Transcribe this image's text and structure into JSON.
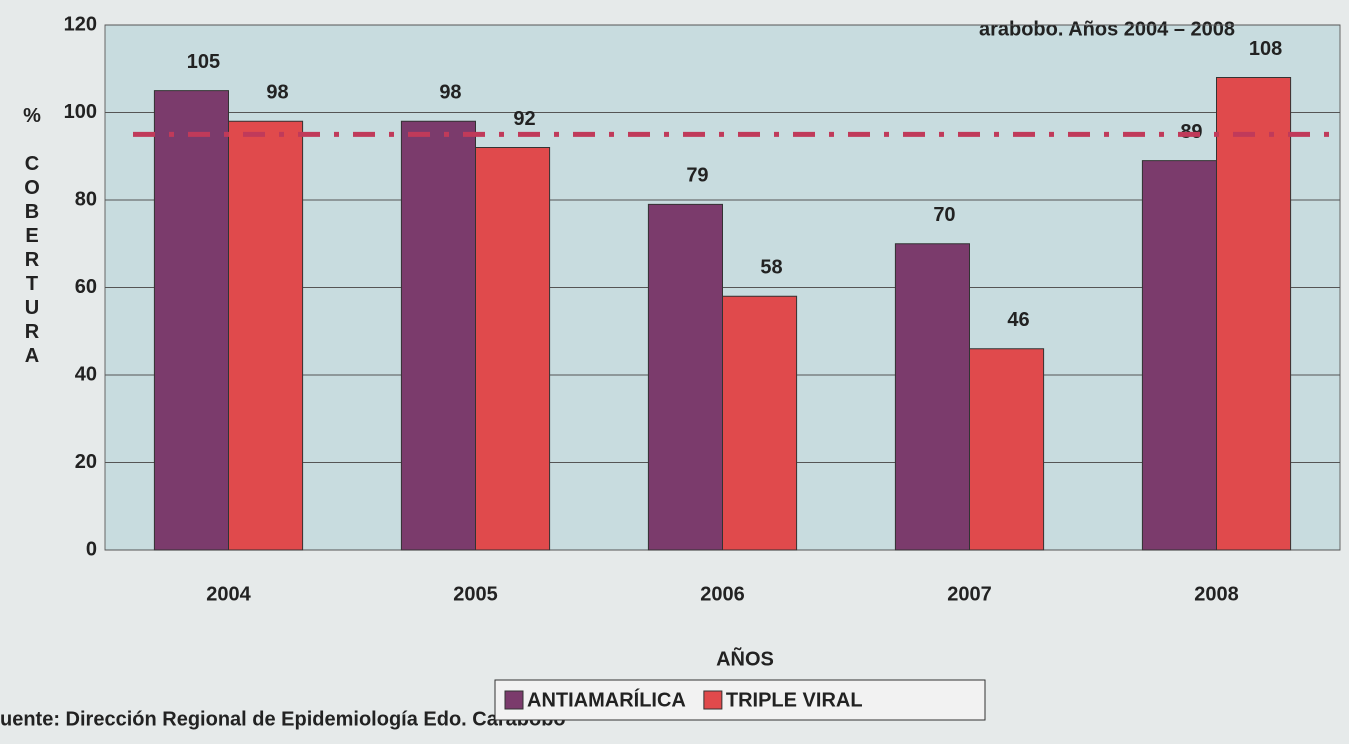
{
  "chart_data": {
    "type": "bar",
    "title": "arabobo. Años 2004 – 2008",
    "y_label": "% COBERTURA",
    "x_label": "AÑOS",
    "source": "uente: Dirección Regional de Epidemiología Edo. Carabobo",
    "categories": [
      "2004",
      "2005",
      "2006",
      "2007",
      "2008"
    ],
    "series": [
      {
        "name": "ANTIAMARÍLICA",
        "color": "#7b3b6c",
        "values": [
          105,
          98,
          79,
          70,
          89
        ]
      },
      {
        "name": "TRIPLE VIRAL",
        "color": "#e04a4c",
        "values": [
          98,
          92,
          58,
          46,
          108
        ]
      }
    ],
    "reference_line": 95,
    "ylim": [
      0,
      120
    ],
    "yticks": [
      0,
      20,
      40,
      60,
      80,
      100,
      120
    ],
    "grid": true,
    "legend": "bottom"
  }
}
